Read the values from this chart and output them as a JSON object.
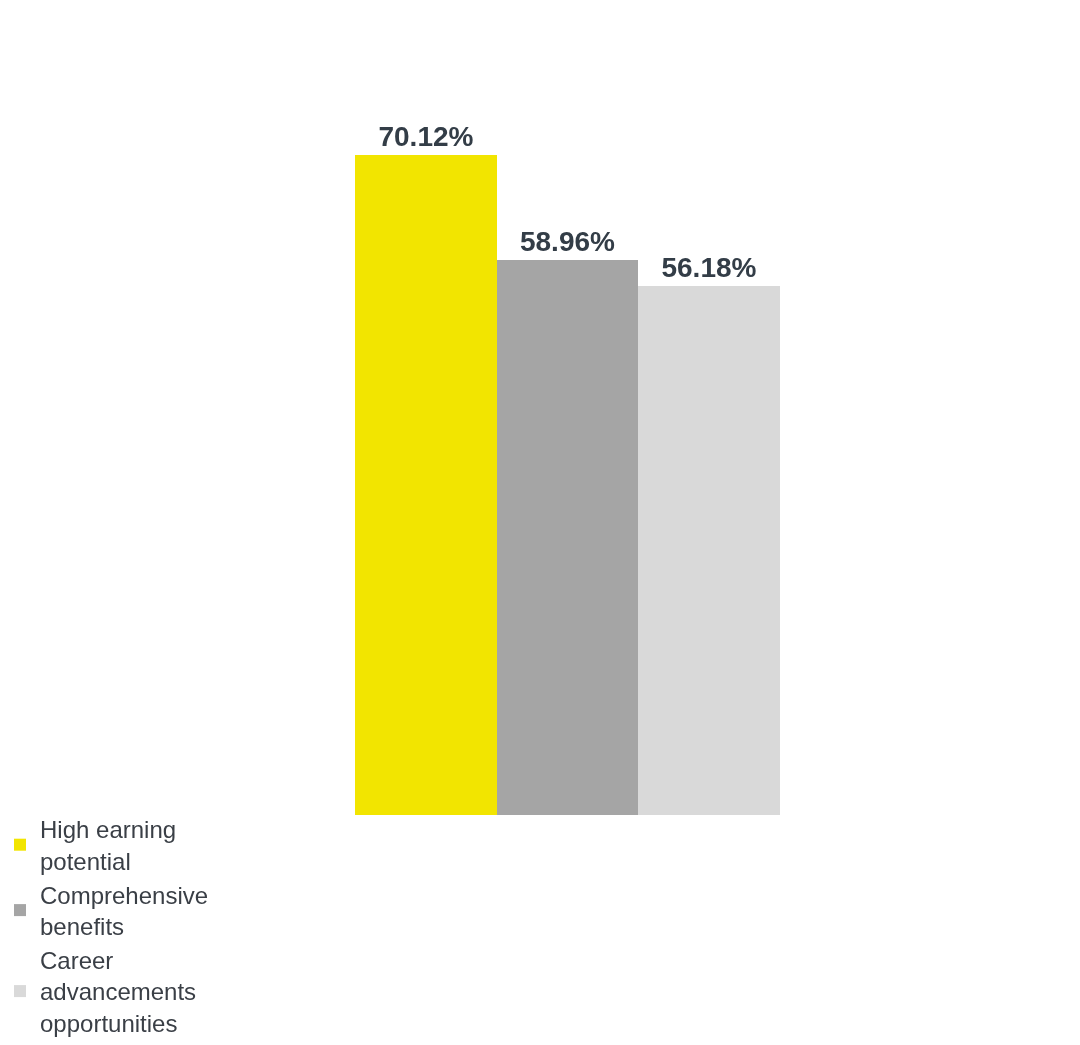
{
  "chart_data": {
    "type": "bar",
    "categories": [
      null
    ],
    "series": [
      {
        "name": "High earning potential",
        "color": "#f2e500",
        "values": [
          70.12
        ],
        "value_labels": [
          "70.12%"
        ]
      },
      {
        "name": "Comprehensive benefits",
        "color": "#a5a5a5",
        "values": [
          58.96
        ],
        "value_labels": [
          "58.96%"
        ]
      },
      {
        "name": "Career advancements opportunities",
        "color": "#d9d9d9",
        "values": [
          56.18
        ],
        "value_labels": [
          "56.18%"
        ]
      }
    ],
    "legend": "bottom"
  }
}
